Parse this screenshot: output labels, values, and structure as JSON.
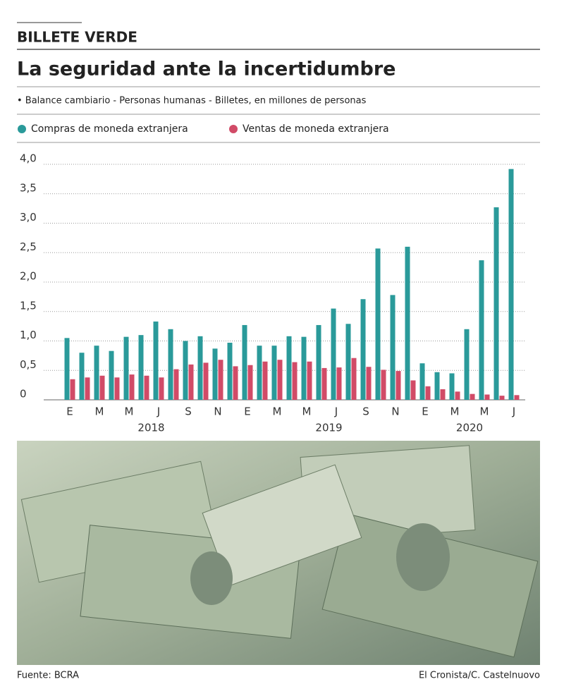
{
  "chart_data": {
    "type": "bar",
    "kicker": "BILLETE VERDE",
    "title": "La seguridad ante la incertidumbre",
    "subtitle": "• Balance cambiario - Personas humanas - Billetes, en millones de personas",
    "categories": [
      "E",
      null,
      "M",
      null,
      "M",
      null,
      "J",
      null,
      "S",
      null,
      "N",
      null,
      "E",
      null,
      "M",
      null,
      "M",
      null,
      "J",
      null,
      "S",
      null,
      "N",
      null,
      "E",
      null,
      "M",
      null,
      "M",
      null,
      "J"
    ],
    "year_labels": [
      "2018",
      "2019",
      "2020"
    ],
    "series": [
      {
        "name": "Compras de moneda extranjera",
        "color": "#2a9a9a",
        "values": [
          1.05,
          0.8,
          0.92,
          0.83,
          1.07,
          1.1,
          1.33,
          1.2,
          1.0,
          1.08,
          0.87,
          0.97,
          1.27,
          0.92,
          0.92,
          1.08,
          1.07,
          1.27,
          1.55,
          1.29,
          1.71,
          2.57,
          1.78,
          2.6,
          0.62,
          0.47,
          0.45,
          1.2,
          2.37,
          3.27,
          3.92
        ]
      },
      {
        "name": "Ventas de moneda extranjera",
        "color": "#d14b67",
        "values": [
          0.35,
          0.38,
          0.41,
          0.38,
          0.43,
          0.41,
          0.38,
          0.52,
          0.6,
          0.63,
          0.68,
          0.57,
          0.59,
          0.65,
          0.68,
          0.64,
          0.65,
          0.54,
          0.55,
          0.71,
          0.56,
          0.51,
          0.49,
          0.33,
          0.23,
          0.18,
          0.14,
          0.1,
          0.09,
          0.07,
          0.08
        ]
      }
    ],
    "ylim": [
      0,
      4
    ],
    "yticks": [
      0,
      {
        "value": 0.5,
        "label": "0,5"
      },
      {
        "value": 1,
        "label": "1,0"
      },
      {
        "value": 1.5,
        "label": "1,5"
      },
      {
        "value": 2,
        "label": "2,0"
      },
      {
        "value": 2.5,
        "label": "2,5"
      },
      {
        "value": 3,
        "label": "3,0"
      },
      {
        "value": 3.5,
        "label": "3,5"
      },
      {
        "value": 4,
        "label": "4,0"
      }
    ],
    "grid": true,
    "source": "Fuente: BCRA",
    "credit": "El Cronista/C. Castelnuovo"
  }
}
